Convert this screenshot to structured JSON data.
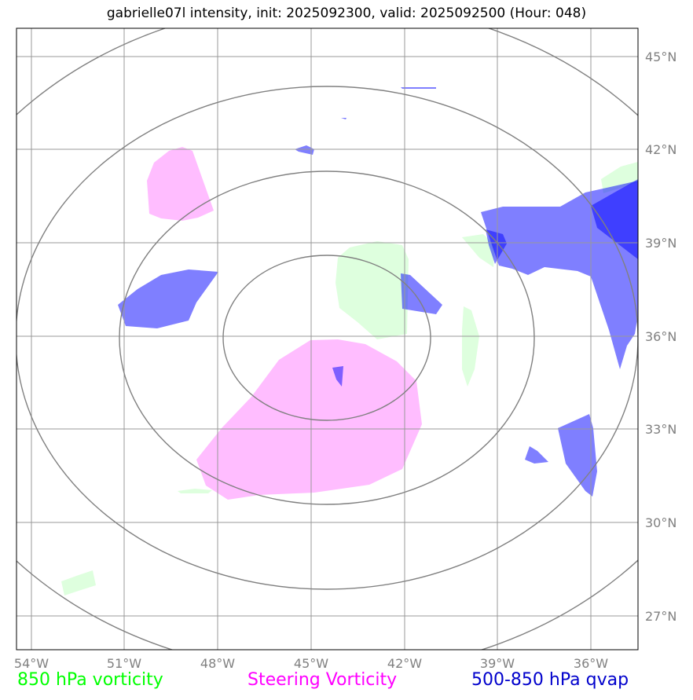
{
  "title": "gabrielle07l intensity, init: 2025092300, valid: 2025092500 (Hour: 048)",
  "map": {
    "lon_labels": [
      "54°W",
      "51°W",
      "48°W",
      "45°W",
      "42°W",
      "39°W",
      "36°W"
    ],
    "lat_labels": [
      "45°N",
      "42°N",
      "39°N",
      "36°N",
      "33°N",
      "30°N",
      "27°N"
    ]
  },
  "legend": {
    "green": "850 hPa vorticity",
    "magenta": "Steering Vorticity",
    "blue": "500-850 hPa qvap"
  },
  "colors": {
    "vorticity_fill": "#ccffcc",
    "steering_fill": "#ff99ff",
    "qvap_fill": "#0000ff",
    "grid": "#999999",
    "rings": "#808080"
  }
}
